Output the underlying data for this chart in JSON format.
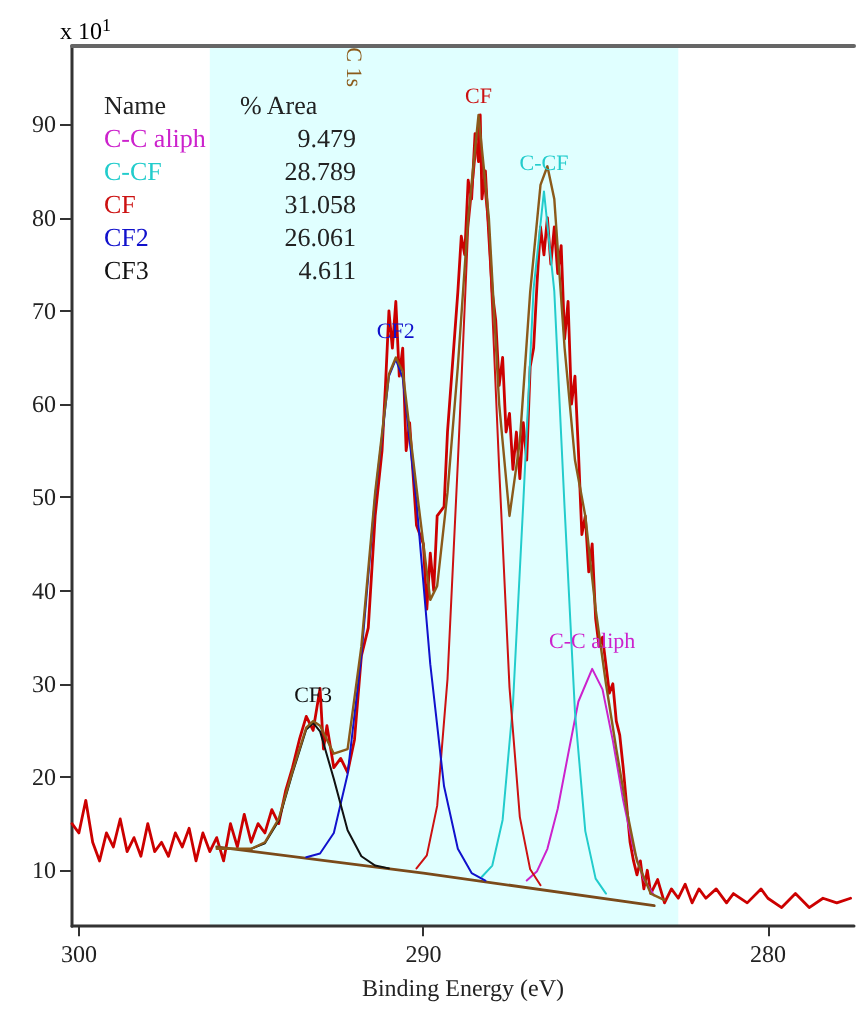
{
  "chart_data": {
    "type": "line",
    "xlabel": "Binding Energy (eV)",
    "xlim": [
      300.2,
      277.5
    ],
    "ylim": [
      4,
      98.4
    ],
    "xticks": [
      300,
      290,
      280
    ],
    "yticks": [
      10,
      20,
      30,
      40,
      50,
      60,
      70,
      80,
      90
    ],
    "grid": false,
    "legend": false,
    "marker": "none",
    "line_style": "solid",
    "annotations": [
      "x 10$^{1}$",
      "Name",
      "% Area",
      "9.479",
      "28.789",
      "31.058",
      "26.061",
      "4.611"
    ],
    "bands": [
      {
        "axis": "x",
        "from": 296.2,
        "to": 282.6,
        "color": "#e0ffff"
      }
    ],
    "series": [
      {
        "name": "C-C aliph",
        "color": "#cc22cc",
        "x": [
          287.0,
          286.7,
          286.4,
          286.1,
          285.8,
          285.5,
          285.1,
          284.8,
          284.5,
          284.2,
          283.9,
          283.6,
          283.3
        ],
        "values": [
          8.9,
          9.9,
          12.3,
          16.6,
          22.4,
          28.1,
          31.6,
          29.4,
          23.9,
          17.5,
          12.3,
          9.0,
          7.3
        ]
      },
      {
        "name": "C-CF",
        "color": "#22cccc",
        "x": [
          288.3,
          288.0,
          287.7,
          287.4,
          287.1,
          286.8,
          286.5,
          286.2,
          285.9,
          285.6,
          285.3,
          285.0,
          284.7
        ],
        "values": [
          9.3,
          10.5,
          15.4,
          27.8,
          49.4,
          72.4,
          82.8,
          72.1,
          48.8,
          27.0,
          14.2,
          9.1,
          7.5
        ]
      },
      {
        "name": "CF",
        "color": "#cc1111",
        "x": [
          290.2,
          289.9,
          289.6,
          289.3,
          289.0,
          288.7,
          288.4,
          288.1,
          287.8,
          287.5,
          287.2,
          286.9,
          286.6
        ],
        "values": [
          10.2,
          11.6,
          16.9,
          30.5,
          53.7,
          78.9,
          90.0,
          78.6,
          53.1,
          29.6,
          15.7,
          10.1,
          8.4
        ]
      },
      {
        "name": "CF2",
        "color": "#1111cc",
        "x": [
          293.4,
          293.0,
          292.6,
          292.2,
          291.8,
          291.4,
          291.0,
          290.8,
          290.6,
          290.2,
          289.8,
          289.4,
          289.0,
          288.6,
          288.2
        ],
        "values": [
          11.4,
          11.8,
          14.0,
          20.3,
          33.0,
          50.1,
          63.0,
          64.8,
          62.8,
          49.5,
          32.1,
          19.0,
          12.3,
          9.7,
          8.9
        ]
      },
      {
        "name": "CF3",
        "color": "#111111",
        "x": [
          295.0,
          294.6,
          294.2,
          293.8,
          293.4,
          293.2,
          293.0,
          292.6,
          292.2,
          291.8,
          291.4,
          291.0
        ],
        "values": [
          12.3,
          12.9,
          15.3,
          20.4,
          25.1,
          25.8,
          24.9,
          19.8,
          14.3,
          11.5,
          10.5,
          10.2
        ]
      },
      {
        "name": "C 1s",
        "color": "#8b5a1a",
        "x": [
          296.0,
          295.0,
          294.6,
          294.2,
          293.8,
          293.4,
          293.2,
          293.0,
          292.6,
          292.2,
          291.8,
          291.4,
          291.0,
          290.8,
          290.6,
          290.2,
          289.8,
          289.6,
          289.3,
          289.0,
          288.7,
          288.4,
          288.1,
          287.8,
          287.5,
          287.2,
          286.9,
          286.6,
          286.4,
          286.2,
          285.9,
          285.6,
          285.3,
          285.0,
          284.7,
          284.4,
          284.1,
          283.8,
          283.4,
          283.0
        ],
        "values": [
          12.3,
          12.3,
          13.0,
          15.5,
          20.6,
          25.3,
          26.0,
          25.5,
          22.5,
          23.0,
          34.0,
          50.5,
          63.2,
          65.0,
          63.5,
          51.0,
          39.0,
          40.5,
          50.5,
          64.0,
          80.0,
          91.0,
          80.0,
          60.0,
          48.0,
          56.0,
          72.0,
          83.5,
          85.5,
          82.0,
          66.0,
          54.0,
          48.0,
          38.0,
          30.0,
          23.0,
          16.5,
          11.0,
          7.5,
          6.8
        ]
      },
      {
        "color": "#cc0000",
        "x": [
          300.2,
          300.0,
          299.8,
          299.6,
          299.4,
          299.2,
          299.0,
          298.8,
          298.6,
          298.4,
          298.2,
          298.0,
          297.8,
          297.6,
          297.4,
          297.2,
          297.0,
          296.8,
          296.6,
          296.4,
          296.2,
          296.0,
          295.8,
          295.6,
          295.4,
          295.2,
          295.0,
          294.8,
          294.6,
          294.4,
          294.2,
          294.0,
          293.8,
          293.6,
          293.4,
          293.2,
          293.0,
          292.9,
          292.8,
          292.6,
          292.4,
          292.2,
          292.0,
          291.8,
          291.6,
          291.4,
          291.2,
          291.1,
          291.0,
          290.9,
          290.8,
          290.7,
          290.6,
          290.5,
          290.4,
          290.2,
          290.0,
          289.9,
          289.8,
          289.7,
          289.6,
          289.4,
          289.3,
          289.2,
          289.0,
          288.9,
          288.8,
          288.7,
          288.6,
          288.5,
          288.4,
          288.35,
          288.3,
          288.2,
          288.1,
          288.0,
          287.9,
          287.8,
          287.7,
          287.6,
          287.5,
          287.4,
          287.3,
          287.2,
          287.1,
          287.0,
          286.9,
          286.8,
          286.7,
          286.6,
          286.5,
          286.4,
          286.3,
          286.2,
          286.1,
          286.0,
          285.9,
          285.8,
          285.7,
          285.6,
          285.5,
          285.4,
          285.3,
          285.2,
          285.1,
          285.0,
          284.9,
          284.8,
          284.7,
          284.6,
          284.5,
          284.4,
          284.3,
          284.2,
          284.1,
          284.0,
          283.9,
          283.8,
          283.7,
          283.6,
          283.5,
          283.4,
          283.2,
          283.0,
          282.8,
          282.6,
          282.4,
          282.2,
          282.0,
          281.8,
          281.5,
          281.2,
          281.0,
          280.6,
          280.2,
          280.0,
          279.6,
          279.2,
          278.8,
          278.4,
          278.0,
          277.6
        ],
        "values": [
          15,
          14,
          17.5,
          13,
          11,
          14,
          12.5,
          15.5,
          12,
          13.5,
          11.5,
          15,
          12,
          13,
          11.5,
          14,
          12.5,
          14.5,
          11,
          14,
          12,
          13.5,
          11,
          15,
          12.5,
          16,
          13,
          15,
          14,
          16.5,
          15,
          18.5,
          21,
          24,
          26.5,
          25,
          29.5,
          23,
          25.5,
          21,
          22,
          20.5,
          24,
          33,
          36,
          48,
          55,
          62,
          70,
          66,
          71,
          63,
          66,
          55,
          58,
          47,
          45,
          38,
          44,
          40,
          48,
          49,
          57,
          62,
          72,
          78,
          76,
          84,
          82,
          89,
          86,
          91,
          82,
          85,
          78,
          72,
          69,
          62,
          65,
          57,
          59,
          53,
          57,
          52,
          58,
          54,
          64,
          66,
          73,
          79,
          76,
          80,
          75,
          79,
          74,
          77,
          67,
          71,
          60,
          63,
          55,
          46,
          48,
          42,
          45,
          37,
          34,
          35,
          32,
          29,
          30,
          26,
          24.5,
          21,
          17,
          13,
          11,
          9.5,
          11,
          8,
          10,
          7.5,
          9,
          6.5,
          8,
          7,
          8.5,
          6.5,
          8,
          7,
          8,
          6.5,
          7.5,
          6.5,
          8,
          7,
          6,
          7.5,
          6,
          7,
          6.5,
          7
        ]
      },
      {
        "color": "#7a4a1a",
        "x": [
          296.0,
          290.0,
          283.3
        ],
        "values": [
          12.5,
          9.7,
          6.2
        ]
      }
    ]
  }
}
